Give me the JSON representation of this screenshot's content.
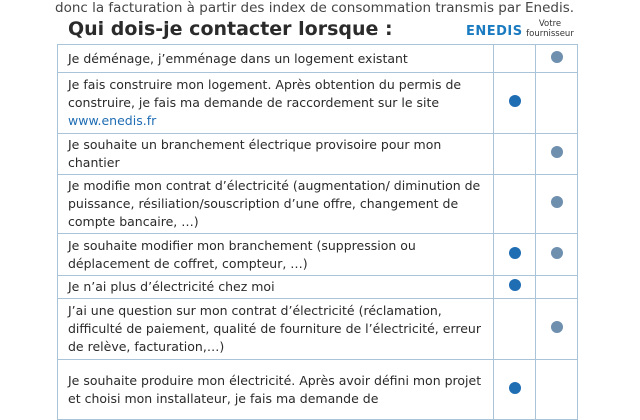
{
  "intro": "donc la facturation à partir des index de consommation transmis par Enedis.",
  "title": "Qui dois-je contacter lorsque :",
  "columns": {
    "enedis_logo": "enedis",
    "supplier": "Votre fournisseur"
  },
  "colors": {
    "enedis": "#1f6db3",
    "supplier": "#6f8fae"
  },
  "rows": [
    {
      "text": "Je déménage, j’emménage dans un logement existant",
      "enedis": false,
      "supplier": true
    },
    {
      "text": "Je fais construire mon logement. Après obtention du permis de construire, je fais ma demande de raccordement sur le site",
      "link": "www.enedis.fr",
      "enedis": true,
      "supplier": false
    },
    {
      "text": "Je souhaite un branchement électrique provisoire pour mon chantier",
      "enedis": false,
      "supplier": true
    },
    {
      "text": "Je modifie mon contrat d’électricité (augmentation/ diminution de puissance, résiliation/souscription d’une offre, changement de compte bancaire, …)",
      "enedis": false,
      "supplier": true
    },
    {
      "text": "Je souhaite modifier mon branchement (suppression ou déplacement de coffret, compteur, …)",
      "enedis": true,
      "supplier": true
    },
    {
      "text": "Je n’ai plus d’électricité chez moi",
      "enedis": true,
      "supplier": false
    },
    {
      "text": "J’ai une question sur mon contrat d’électricité (réclamation, difficulté de paiement, qualité de fourniture de l’électricité, erreur de relève, facturation,…)",
      "enedis": false,
      "supplier": true
    },
    {
      "text": "Je souhaite produire mon électricité. Après avoir défini mon projet et choisi mon installateur, je fais ma demande de",
      "enedis": true,
      "supplier": false
    }
  ]
}
